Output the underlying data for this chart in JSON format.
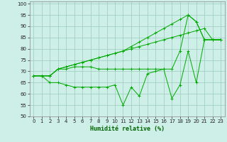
{
  "xlabel": "Humidité relative (%)",
  "xlim": [
    -0.5,
    23.5
  ],
  "ylim": [
    50,
    101
  ],
  "yticks": [
    50,
    55,
    60,
    65,
    70,
    75,
    80,
    85,
    90,
    95,
    100
  ],
  "xticks": [
    0,
    1,
    2,
    3,
    4,
    5,
    6,
    7,
    8,
    9,
    10,
    11,
    12,
    13,
    14,
    15,
    16,
    17,
    18,
    19,
    20,
    21,
    22,
    23
  ],
  "bg_color": "#ceeee8",
  "grid_color": "#99ccbb",
  "line_color": "#00aa00",
  "line1": [
    68,
    68,
    68,
    71,
    71,
    72,
    72,
    72,
    71,
    71,
    71,
    71,
    71,
    71,
    71,
    71,
    71,
    71,
    79,
    95,
    92,
    84,
    84,
    84
  ],
  "line2": [
    68,
    68,
    68,
    71,
    72,
    73,
    74,
    75,
    76,
    77,
    78,
    79,
    80,
    81,
    82,
    83,
    84,
    85,
    86,
    87,
    88,
    89,
    84,
    84
  ],
  "line3": [
    68,
    68,
    68,
    71,
    72,
    73,
    74,
    75,
    76,
    77,
    78,
    79,
    81,
    83,
    85,
    87,
    89,
    91,
    93,
    95,
    92,
    84,
    84,
    84
  ],
  "line4": [
    68,
    68,
    65,
    65,
    64,
    63,
    63,
    63,
    63,
    63,
    64,
    55,
    63,
    59,
    69,
    70,
    71,
    58,
    64,
    79,
    65,
    84,
    84,
    84
  ]
}
